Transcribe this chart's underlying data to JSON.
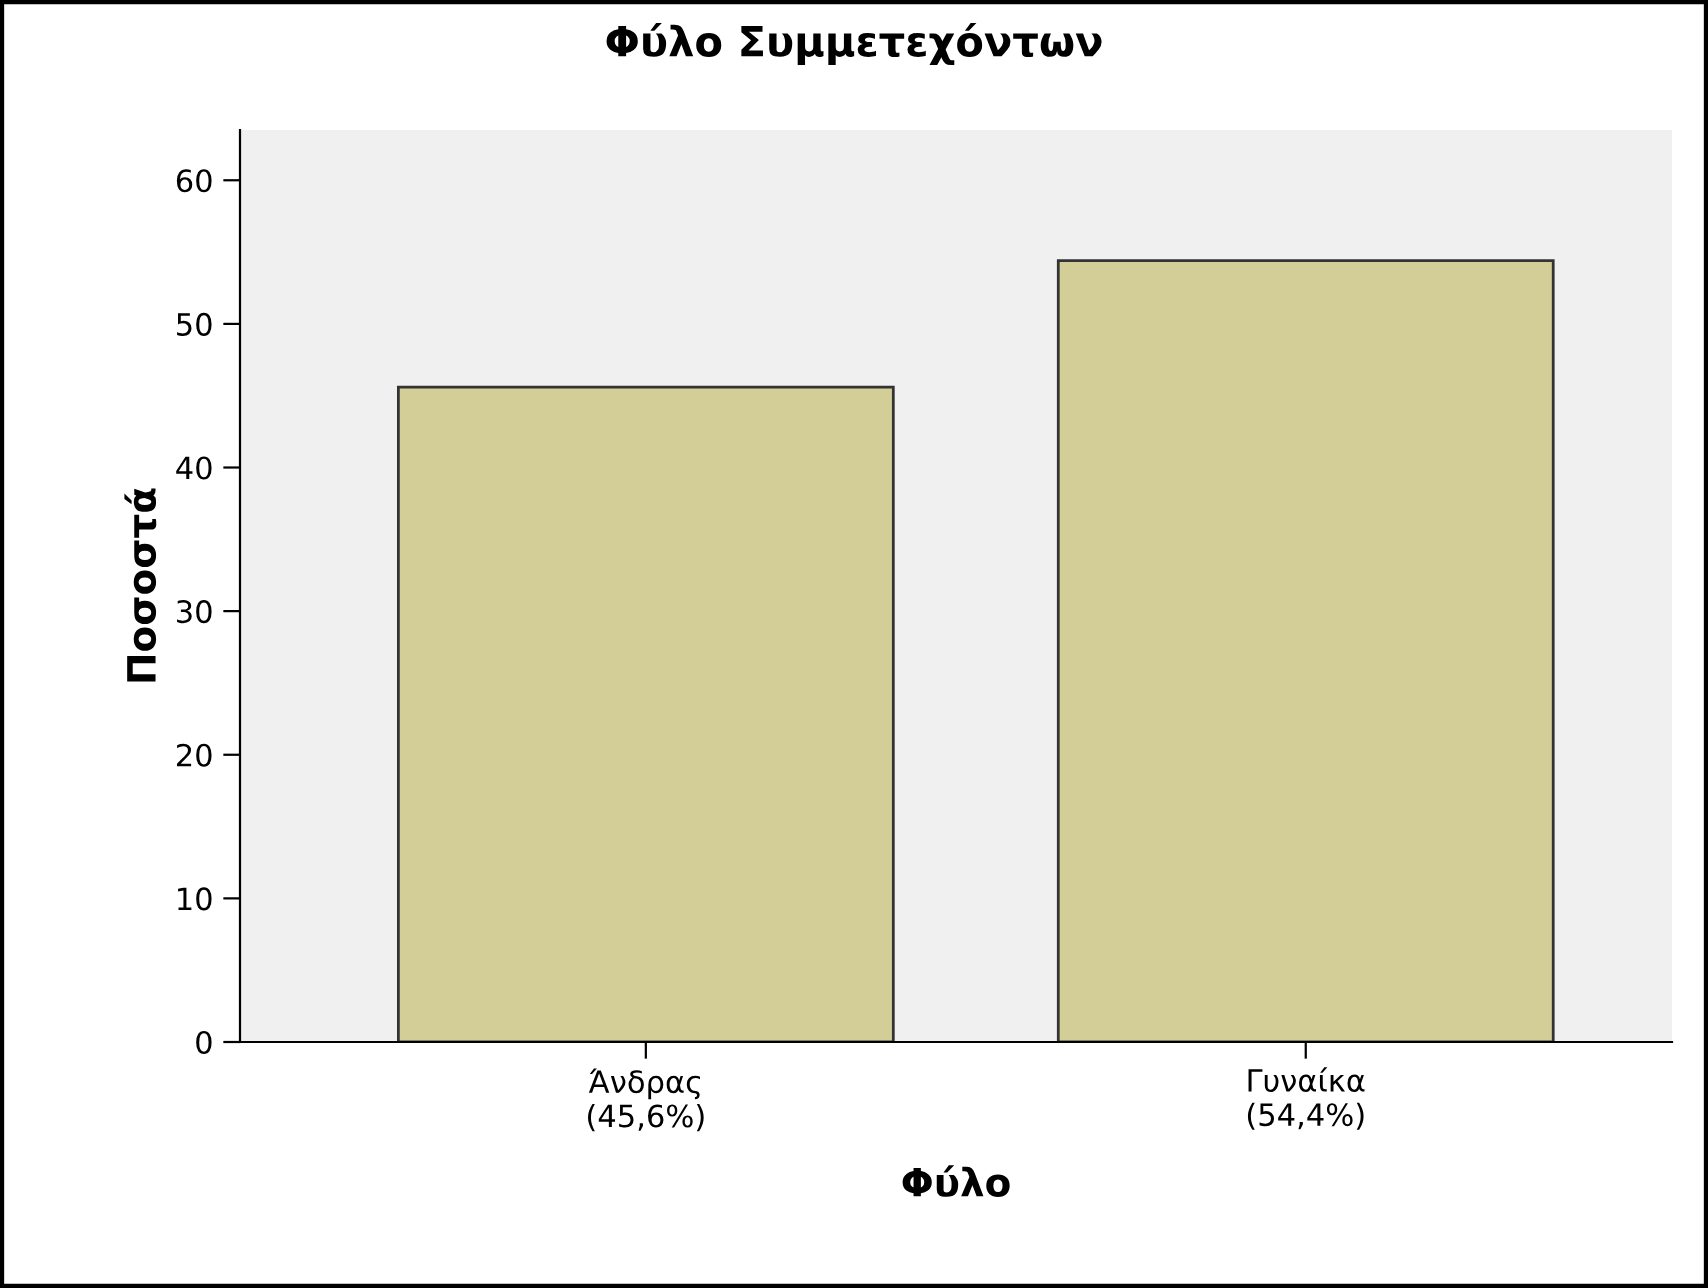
{
  "chart_data": {
    "type": "bar",
    "title": "Φύλο Συμμετεχόντων",
    "xlabel": "Φύλο",
    "ylabel": "Ποσοστά",
    "categories": [
      "Άνδρας\n(45,6%)",
      "Γυναίκα\n(54,4%)"
    ],
    "values": [
      45.6,
      54.4
    ],
    "color": "#d3ce97",
    "ylim": [
      0,
      63.5
    ],
    "yticks": [
      0,
      10,
      20,
      30,
      40,
      50,
      60
    ],
    "grid": false,
    "legend": false
  }
}
